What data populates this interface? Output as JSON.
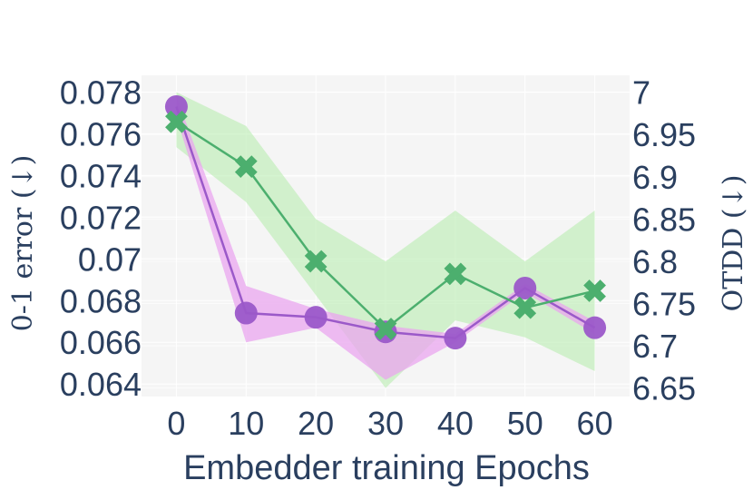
{
  "chart_data": {
    "type": "line",
    "xlabel": "Embedder training Epochs",
    "ylabel_left": "0-1 error (↓)",
    "ylabel_right": "OTDD (↓)",
    "x": [
      0,
      10,
      20,
      30,
      40,
      50,
      60
    ],
    "x_ticks": [
      "0",
      "10",
      "20",
      "30",
      "40",
      "50",
      "60"
    ],
    "xlim": [
      -5,
      65
    ],
    "ylim_left": [
      0.0634,
      0.0788
    ],
    "ylim_right": [
      6.64,
      7.02
    ],
    "y_ticks_left": [
      "0.064",
      "0.066",
      "0.068",
      "0.07",
      "0.072",
      "0.074",
      "0.076",
      "0.078"
    ],
    "y_ticks_right": [
      "6.65",
      "6.7",
      "6.75",
      "6.8",
      "6.85",
      "6.9",
      "6.95",
      "7"
    ],
    "grid": true,
    "series": [
      {
        "axis": "left",
        "marker": "circle",
        "color": "#9b59c9",
        "band_color": "#e9a6ef",
        "values": [
          0.0773,
          0.0674,
          0.0672,
          0.0665,
          0.0662,
          0.0686,
          0.0667
        ],
        "band_upper": [
          0.0778,
          0.0687,
          0.0676,
          0.0668,
          0.0664,
          0.0688,
          0.067
        ],
        "band_lower": [
          0.0768,
          0.066,
          0.0667,
          0.0642,
          0.066,
          0.0684,
          0.0664
        ]
      },
      {
        "axis": "right",
        "marker": "x",
        "color": "#4caf6e",
        "band_color": "#b9ecb0",
        "values": [
          6.965,
          6.912,
          6.8,
          6.72,
          6.785,
          6.745,
          6.765
        ],
        "band_upper": [
          7.0,
          6.96,
          6.85,
          6.8,
          6.86,
          6.8,
          6.86
        ],
        "band_lower": [
          6.935,
          6.87,
          6.76,
          6.65,
          6.73,
          6.71,
          6.67
        ]
      }
    ]
  }
}
